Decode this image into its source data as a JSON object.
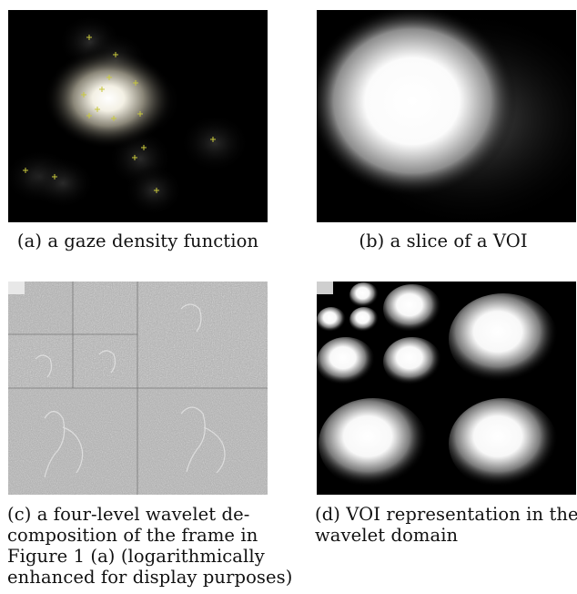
{
  "figure": {
    "panels": [
      {
        "id": "a",
        "caption_lines": [
          "(a) a gaze density function"
        ],
        "marker_color": "#c8c83c",
        "gaze_points_count": 16
      },
      {
        "id": "b",
        "caption_lines": [
          "(b) a slice of a VOI"
        ]
      },
      {
        "id": "c",
        "caption_lines": [
          "(c) a four-level wavelet de-",
          "composition of the frame in",
          "Figure 1 (a) (logarithmically",
          "enhanced for display purposes)"
        ]
      },
      {
        "id": "d",
        "caption_lines": [
          "(d) VOI representation in the",
          "wavelet domain"
        ]
      }
    ]
  }
}
